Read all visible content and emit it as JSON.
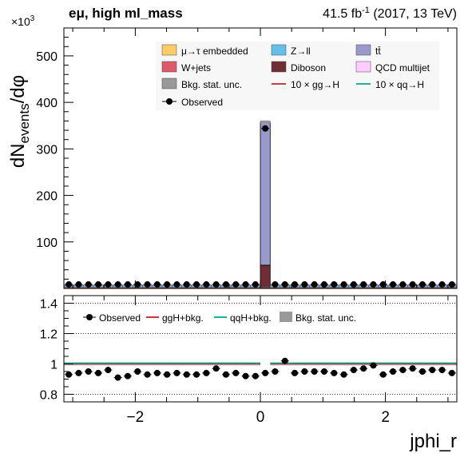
{
  "header": {
    "channel": "eμ, high ml_mass",
    "lumi_prefix": "41.5 fb",
    "lumi_exp": "-1",
    "lumi_suffix": " (2017, 13 TeV)",
    "y_multiplier_base": "×10",
    "y_multiplier_exp": "3"
  },
  "main_panel": {
    "ylabel_main": "dN",
    "ylabel_sub": "events",
    "ylabel_tail": "/dφ",
    "legend": [
      {
        "label": "μ→τ embedded",
        "color": "#ffcc66",
        "kind": "box"
      },
      {
        "label": "Z→ll",
        "color": "#64c0e8",
        "kind": "box"
      },
      {
        "label": "tt̄",
        "color": "#9999cc",
        "kind": "box"
      },
      {
        "label": "W+jets",
        "color": "#de5a6a",
        "kind": "box"
      },
      {
        "label": "Diboson",
        "color": "#6f2d35",
        "kind": "box"
      },
      {
        "label": "QCD multijet",
        "color": "#ffccff",
        "kind": "box"
      },
      {
        "label": "Bkg. stat. unc.",
        "color": "#999999",
        "kind": "box"
      },
      {
        "label": "10 × gg→H",
        "color": "#bf2229",
        "kind": "line"
      },
      {
        "label": "10 × qq→H",
        "color": "#00a88f",
        "kind": "line"
      },
      {
        "label": "Observed",
        "color": "#000000",
        "kind": "marker"
      }
    ]
  },
  "ratio_panel": {
    "legend": [
      {
        "label": "Observed",
        "kind": "marker",
        "color": "#000000"
      },
      {
        "label": "ggH+bkg.",
        "kind": "line",
        "color": "#bf2229"
      },
      {
        "label": "qqH+bkg.",
        "kind": "line",
        "color": "#00a88f"
      },
      {
        "label": "Bkg. stat. unc.",
        "kind": "box",
        "color": "#999999"
      }
    ]
  },
  "xlabel": "jphi_r",
  "chart_data": [
    {
      "type": "bar",
      "title": "",
      "xlabel": "jphi_r",
      "ylabel": "dNevents/dφ",
      "y_unit_multiplier": 1000,
      "xlim": [
        -3.1416,
        3.1416
      ],
      "ylim": [
        0,
        560
      ],
      "x_ticks": [
        -2,
        0,
        2
      ],
      "y_ticks": [
        100,
        200,
        300,
        400,
        500
      ],
      "nbins": 40,
      "central_bin": {
        "x_low": 0.0,
        "x_high": 0.157,
        "stack": [
          {
            "name": "Diboson",
            "value": 50
          },
          {
            "name": "tt̄",
            "value": 308
          }
        ],
        "total": 358,
        "observed": 344
      },
      "background_per_other_bin": 7,
      "observed": [
        8.5,
        8.5,
        8.5,
        8.5,
        8.5,
        8.5,
        8.5,
        8.5,
        8.5,
        8.5,
        8.5,
        8.5,
        8.5,
        8.5,
        8.5,
        8.5,
        8.5,
        8.5,
        8.5,
        8.5,
        344,
        8.5,
        8.5,
        8.5,
        8.5,
        8.5,
        8.5,
        8.5,
        8.5,
        8.5,
        8.5,
        8.5,
        8.5,
        8.5,
        8.5,
        8.5,
        8.5,
        8.5,
        8.5,
        8.5
      ]
    },
    {
      "type": "scatter",
      "title": "",
      "xlabel": "jphi_r",
      "ylabel": "",
      "xlim": [
        -3.1416,
        3.1416
      ],
      "ylim": [
        0.75,
        1.45
      ],
      "y_ticks": [
        0.8,
        1.0,
        1.2,
        1.4
      ],
      "reference_lines": [
        0.8,
        1.0,
        1.2,
        1.4
      ],
      "ratio": [
        0.93,
        0.94,
        0.95,
        0.94,
        0.96,
        0.91,
        0.92,
        0.95,
        0.93,
        0.94,
        0.93,
        0.94,
        0.93,
        0.93,
        0.94,
        0.97,
        0.93,
        0.94,
        0.92,
        0.92,
        0.94,
        0.95,
        1.02,
        0.94,
        0.95,
        0.95,
        0.95,
        0.94,
        0.93,
        0.96,
        0.97,
        0.99,
        0.93,
        0.95,
        0.96,
        0.97,
        0.95,
        0.96,
        0.96,
        0.94
      ]
    }
  ]
}
